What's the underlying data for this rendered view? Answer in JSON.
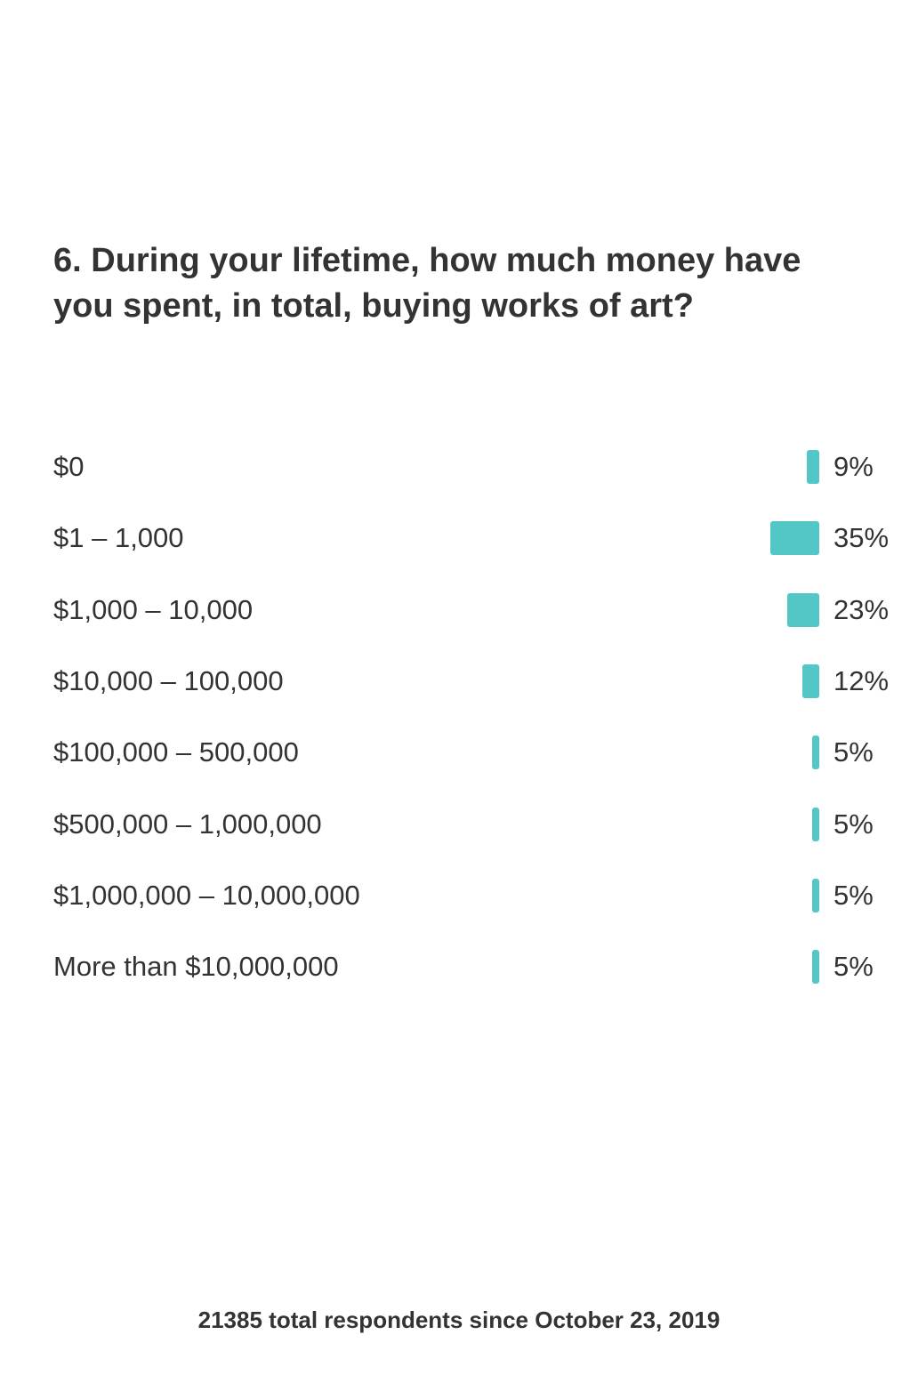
{
  "question": "6. During your lifetime, how much money have you spent, in total, buying works of art?",
  "footer": "21385 total respondents since October 23, 2019",
  "colors": {
    "bar": "#52c7c5",
    "text": "#333333"
  },
  "chart_data": {
    "type": "bar",
    "orientation": "horizontal",
    "unit": "%",
    "categories": [
      "$0",
      "$1 – 1,000",
      "$1,000 – 10,000",
      "$10,000 – 100,000",
      "$100,000 – 500,000",
      "$500,000 – 1,000,000",
      "$1,000,000 – 10,000,000",
      "More than $10,000,000"
    ],
    "values": [
      9,
      35,
      23,
      12,
      5,
      5,
      5,
      5
    ],
    "value_labels": [
      "9%",
      "35%",
      "23%",
      "12%",
      "5%",
      "5%",
      "5%",
      "5%"
    ],
    "title": "6. During your lifetime, how much money have you spent, in total, buying works of art?",
    "xlabel": "",
    "ylabel": "",
    "grid": false
  }
}
